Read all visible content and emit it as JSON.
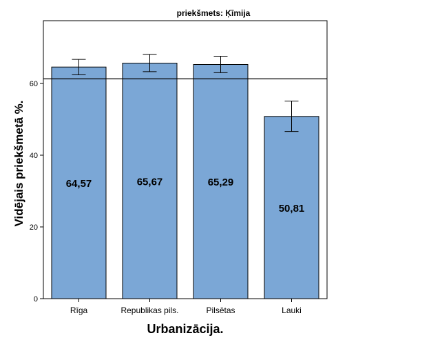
{
  "chart_data": {
    "type": "bar",
    "title": "priekšmets: Ķīmija",
    "xlabel": "Urbanizācija.",
    "ylabel": "Vidējais priekšmetā %.",
    "categories": [
      "Rīga",
      "Republikas pils.",
      "Pilsētas",
      "Lauki"
    ],
    "values": [
      64.57,
      65.67,
      65.29,
      50.81
    ],
    "value_labels": [
      "64,57",
      "65,67",
      "65,29",
      "50,81"
    ],
    "error_bars": [
      {
        "low": 62.4,
        "high": 66.7
      },
      {
        "low": 63.3,
        "high": 68.1
      },
      {
        "low": 63.0,
        "high": 67.6
      },
      {
        "low": 46.6,
        "high": 55.1
      }
    ],
    "reference_line": 61.3,
    "ylim": [
      0,
      77.5
    ],
    "yticks": [
      0,
      20,
      40,
      60
    ],
    "ytick_labels": [
      "0",
      "20",
      "40",
      "60"
    ],
    "grid": false,
    "colors": {
      "bar_fill": "#7ba7d6",
      "bar_stroke": "#000000",
      "axis": "#000000",
      "background": "#ffffff"
    }
  }
}
